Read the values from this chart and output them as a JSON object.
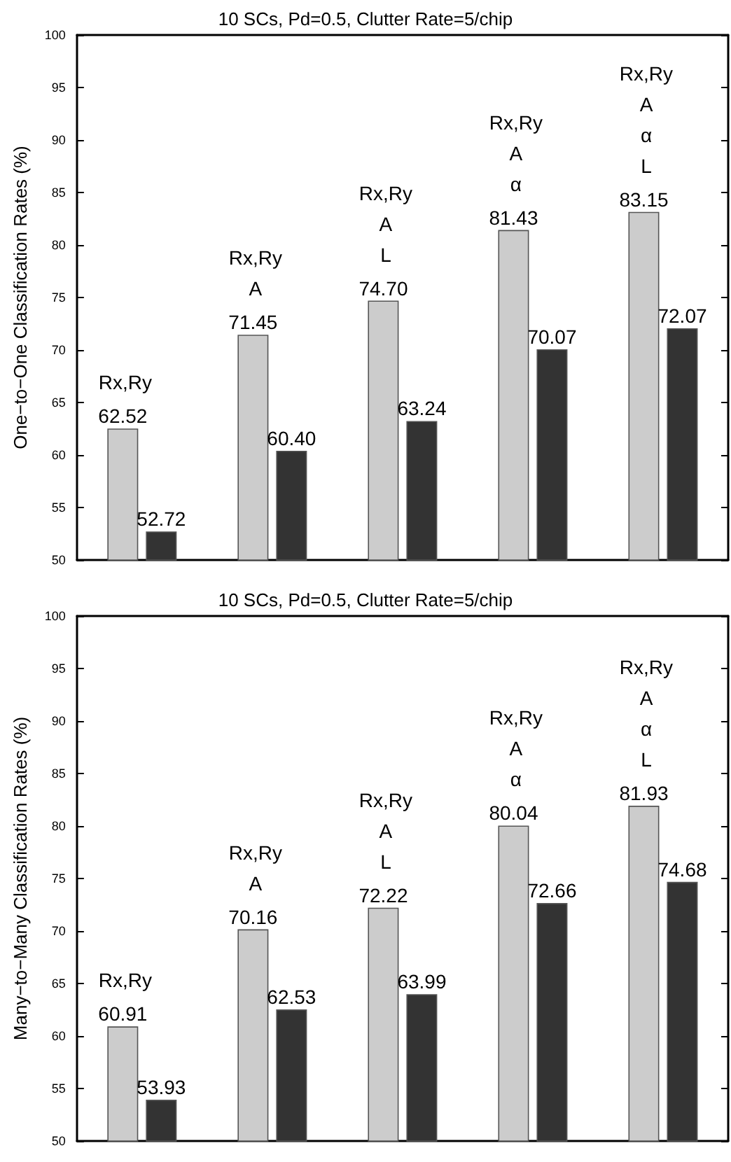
{
  "chart_data": [
    {
      "type": "bar",
      "title": "10 SCs, Pd=0.5, Clutter Rate=5/chip",
      "ylabel": "One−to−One Classification Rates (%)",
      "categories": [
        null,
        null,
        null,
        null,
        null
      ],
      "series": [
        {
          "color": "#cccccc",
          "values": [
            62.52,
            71.45,
            74.7,
            81.43,
            83.15
          ]
        },
        {
          "color": "#333333",
          "values": [
            52.72,
            60.4,
            63.24,
            70.07,
            72.07
          ]
        }
      ],
      "value_labels": [
        [
          "62.52",
          "71.45",
          "74.70",
          "81.43",
          "83.15"
        ],
        [
          "52.72",
          "60.40",
          "63.24",
          "70.07",
          "72.07"
        ]
      ],
      "annotations": [
        "Rx,Ry",
        "Rx,Ry\nA",
        "Rx,Ry\nA\nL",
        "Rx,Ry\nA\nα",
        "Rx,Ry\nA\nα\nL"
      ],
      "ylim": [
        50,
        100
      ],
      "yticks": [
        50,
        55,
        60,
        65,
        70,
        75,
        80,
        85,
        90,
        95,
        100
      ],
      "grid": false,
      "tick_labels": "y"
    },
    {
      "type": "bar",
      "title": "10 SCs, Pd=0.5, Clutter Rate=5/chip",
      "ylabel": "Many−to−Many Classification Rates (%)",
      "categories": [
        null,
        null,
        null,
        null,
        null
      ],
      "series": [
        {
          "color": "#cccccc",
          "values": [
            60.91,
            70.16,
            72.22,
            80.04,
            81.93
          ]
        },
        {
          "color": "#333333",
          "values": [
            53.93,
            62.53,
            63.99,
            72.66,
            74.68
          ]
        }
      ],
      "value_labels": [
        [
          "60.91",
          "70.16",
          "72.22",
          "80.04",
          "81.93"
        ],
        [
          "53.93",
          "62.53",
          "63.99",
          "72.66",
          "74.68"
        ]
      ],
      "annotations": [
        "Rx,Ry",
        "Rx,Ry\nA",
        "Rx,Ry\nA\nL",
        "Rx,Ry\nA\nα",
        "Rx,Ry\nA\nα\nL"
      ],
      "ylim": [
        50,
        100
      ],
      "yticks": [
        50,
        55,
        60,
        65,
        70,
        75,
        80,
        85,
        90,
        95,
        100
      ],
      "grid": false,
      "tick_labels": "y"
    }
  ]
}
